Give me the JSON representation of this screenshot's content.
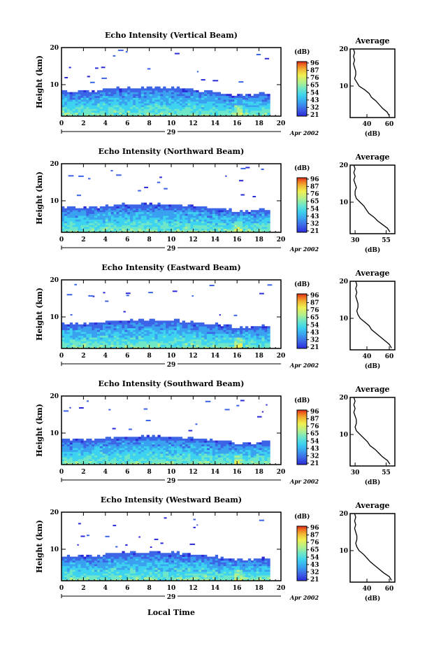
{
  "chart_data": {
    "type": "heatmap",
    "panel_titles": [
      "Echo Intensity (Vertical Beam)",
      "Echo Intensity (Northward Beam)",
      "Echo Intensity (Eastward Beam)",
      "Echo Intensity (Southward Beam)",
      "Echo Intensity (Westward Beam)"
    ],
    "ylabel": "Height (km)",
    "xlabel": "Local Time",
    "xticks": [
      "0",
      "2",
      "4",
      "6",
      "8",
      "10",
      "12",
      "14",
      "16",
      "18",
      "20"
    ],
    "yticks": [
      "10",
      "20"
    ],
    "xlim": [
      0,
      20
    ],
    "ylim": [
      1.5,
      20
    ],
    "date_day": "29",
    "date_label": "Apr 2002",
    "colorbar_unit": "(dB)",
    "colorbar_ticks": [
      [
        "96",
        "87",
        "76",
        "65",
        "54",
        "43",
        "32",
        "21"
      ],
      [
        "96",
        "87",
        "76",
        "65",
        "54",
        "43",
        "32",
        "21"
      ],
      [
        "96",
        "87",
        "76",
        "65",
        "54",
        "43",
        "32",
        "21"
      ],
      [
        "96",
        "87",
        "76",
        "65",
        "54",
        "43",
        "32",
        "21"
      ],
      [
        "96",
        "87",
        "76",
        "65",
        "54",
        "43",
        "32",
        "21"
      ]
    ],
    "colormap": [
      "#2a2ad8",
      "#3c64e6",
      "#3aa0f0",
      "#3cd2f0",
      "#6ee6c8",
      "#b4f08c",
      "#f0f050",
      "#f0b432",
      "#f06e1e",
      "#d2281e"
    ],
    "echo_top_km": [
      8.0,
      8.0,
      8.2,
      8.6,
      8.8,
      8.8,
      9.0,
      9.0,
      8.8,
      8.6,
      8.2,
      7.8,
      7.5,
      7.0,
      7.2,
      7.5
    ],
    "data_end_hour": 19,
    "profile_title": "Average",
    "profile_xlabel": "(dB)",
    "profiles": [
      {
        "xticks": [
          "40",
          "60"
        ],
        "xlim": [
          25,
          65
        ],
        "height_km": [
          2,
          3,
          4,
          5,
          6,
          7,
          8,
          9,
          10,
          11,
          12,
          13,
          14,
          15,
          16,
          17,
          18,
          19,
          20
        ],
        "value_db": [
          60,
          58,
          54,
          51,
          48,
          44,
          42,
          38,
          33,
          31,
          29,
          30,
          30,
          29,
          28,
          29,
          28,
          29,
          28
        ]
      },
      {
        "xticks": [
          "30",
          "55"
        ],
        "xlim": [
          26,
          62
        ],
        "height_km": [
          2,
          3,
          4,
          5,
          6,
          7,
          8,
          9,
          10,
          11,
          12,
          13,
          14,
          15,
          16,
          17,
          18,
          19,
          20
        ],
        "value_db": [
          58,
          56,
          52,
          48,
          45,
          41,
          39,
          37,
          34,
          31,
          30,
          30,
          31,
          30,
          29,
          30,
          29,
          30,
          29
        ]
      },
      {
        "xticks": [
          "40",
          "60"
        ],
        "xlim": [
          25,
          65
        ],
        "height_km": [
          2,
          3,
          4,
          5,
          6,
          7,
          8,
          9,
          10,
          11,
          12,
          13,
          14,
          15,
          16,
          17,
          18,
          19,
          20
        ],
        "value_db": [
          62,
          60,
          56,
          52,
          48,
          44,
          42,
          38,
          34,
          32,
          31,
          32,
          32,
          31,
          30,
          31,
          30,
          31,
          30
        ]
      },
      {
        "xticks": [
          "30",
          "55"
        ],
        "xlim": [
          26,
          62
        ],
        "height_km": [
          2,
          3,
          4,
          5,
          6,
          7,
          8,
          9,
          10,
          11,
          12,
          13,
          14,
          15,
          16,
          17,
          18,
          19,
          20
        ],
        "value_db": [
          58,
          56,
          52,
          49,
          46,
          42,
          40,
          37,
          34,
          31,
          30,
          31,
          31,
          30,
          29,
          30,
          29,
          30,
          29
        ]
      },
      {
        "xticks": [
          "40",
          "60"
        ],
        "xlim": [
          25,
          65
        ],
        "height_km": [
          2,
          3,
          4,
          5,
          6,
          7,
          8,
          9,
          10,
          11,
          12,
          13,
          14,
          15,
          16,
          17,
          18,
          19,
          20
        ],
        "value_db": [
          62,
          60,
          55,
          51,
          47,
          43,
          40,
          37,
          33,
          31,
          30,
          31,
          31,
          30,
          29,
          30,
          29,
          30,
          29
        ]
      }
    ]
  }
}
